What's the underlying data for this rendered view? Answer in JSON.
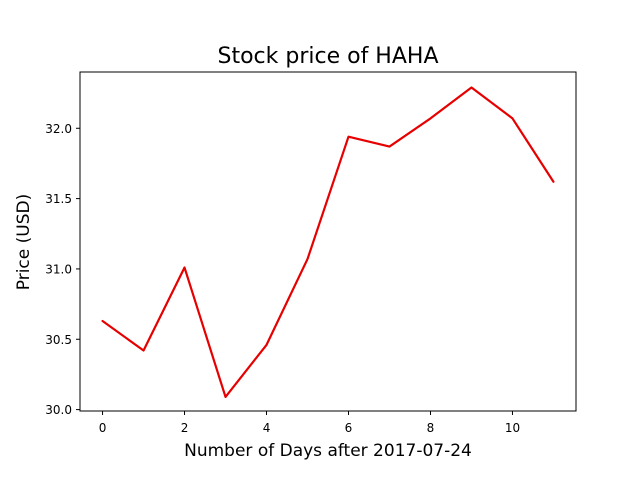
{
  "chart_data": {
    "type": "line",
    "title": "Stock price of HAHA",
    "xlabel": "Number of Days after 2017-07-24",
    "ylabel": "Price (USD)",
    "x": [
      0,
      1,
      2,
      3,
      4,
      5,
      6,
      7,
      8,
      9,
      10,
      11
    ],
    "series": [
      {
        "values": [
          30.63,
          30.42,
          31.01,
          30.09,
          30.46,
          31.07,
          31.94,
          31.87,
          32.07,
          32.29,
          32.07,
          31.62
        ],
        "color": "#e60000"
      }
    ],
    "xticks": [
      0,
      2,
      4,
      6,
      8,
      10
    ],
    "xtick_labels": [
      "0",
      "2",
      "4",
      "6",
      "8",
      "10"
    ],
    "yticks": [
      30.0,
      30.5,
      31.0,
      31.5,
      32.0
    ],
    "ytick_labels": [
      "30.0",
      "30.5",
      "31.0",
      "31.5",
      "32.0"
    ],
    "xlim": [
      -0.55,
      11.55
    ],
    "ylim": [
      29.99,
      32.4
    ],
    "grid": false,
    "legend": false
  }
}
